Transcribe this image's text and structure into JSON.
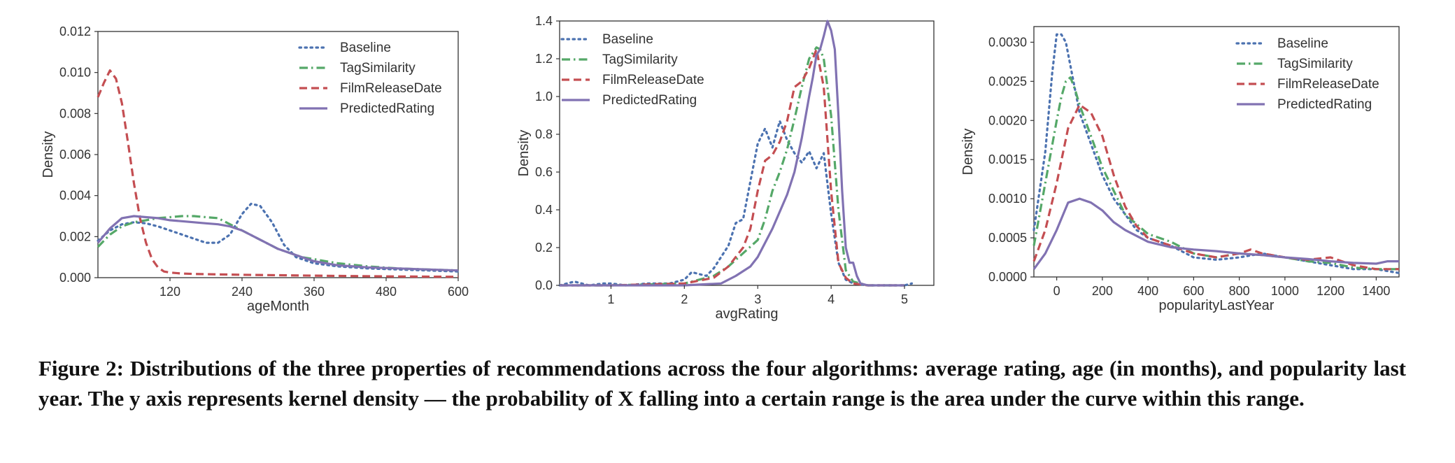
{
  "caption": "Figure 2: Distributions of the three properties of recommendations across the four algorithms: average rating, age (in months), and popularity last year. The y axis represents kernel density — the probability of X falling into a certain range is the area under the curve within this range.",
  "colors": {
    "Baseline": "#4c72b0",
    "TagSimilarity": "#55a868",
    "FilmReleaseDate": "#c44e52",
    "PredictedRating": "#8172b2"
  },
  "chart_data": [
    {
      "type": "line",
      "xlabel": "ageMonth",
      "ylabel": "Density",
      "xlim": [
        0,
        600
      ],
      "ylim": [
        0,
        0.012
      ],
      "xticks": [
        120,
        240,
        360,
        480,
        600
      ],
      "xtick_labels": [
        "120",
        "240",
        "360",
        "480",
        "600"
      ],
      "yticks": [
        0,
        0.002,
        0.004,
        0.006,
        0.008,
        0.01,
        0.012
      ],
      "ytick_labels": [
        "0.000",
        "0.002",
        "0.004",
        "0.006",
        "0.008",
        "0.010",
        "0.012"
      ],
      "legend": "top-right",
      "grid": false,
      "series": [
        {
          "name": "Baseline",
          "style": "dotted",
          "x": [
            0,
            20,
            40,
            60,
            80,
            100,
            120,
            140,
            160,
            180,
            200,
            220,
            240,
            255,
            270,
            290,
            310,
            330,
            360,
            400,
            450,
            500,
            550,
            600
          ],
          "y": [
            0.0018,
            0.0023,
            0.0026,
            0.0027,
            0.00265,
            0.0025,
            0.0023,
            0.0021,
            0.0019,
            0.0017,
            0.0017,
            0.0021,
            0.0031,
            0.0036,
            0.0035,
            0.0027,
            0.0016,
            0.001,
            0.0007,
            0.00055,
            0.00045,
            0.0004,
            0.00035,
            0.0003
          ]
        },
        {
          "name": "TagSimilarity",
          "style": "dashdot",
          "x": [
            0,
            20,
            40,
            60,
            80,
            100,
            120,
            140,
            160,
            180,
            200,
            220,
            240,
            260,
            280,
            300,
            320,
            340,
            360,
            400,
            450,
            500,
            550,
            600
          ],
          "y": [
            0.0015,
            0.0021,
            0.0025,
            0.0027,
            0.0028,
            0.0029,
            0.00295,
            0.003,
            0.003,
            0.00295,
            0.0029,
            0.0026,
            0.0023,
            0.002,
            0.0017,
            0.0014,
            0.0012,
            0.001,
            0.0009,
            0.0007,
            0.00055,
            0.00045,
            0.0004,
            0.00035
          ]
        },
        {
          "name": "FilmReleaseDate",
          "style": "dashed",
          "x": [
            0,
            10,
            20,
            30,
            40,
            50,
            60,
            70,
            80,
            90,
            100,
            110,
            120,
            140,
            160,
            200,
            240,
            300,
            360,
            420,
            480,
            540,
            600
          ],
          "y": [
            0.0088,
            0.0095,
            0.0101,
            0.0097,
            0.0085,
            0.0066,
            0.0046,
            0.0029,
            0.0017,
            0.0009,
            0.0005,
            0.0003,
            0.00025,
            0.0002,
            0.00018,
            0.00016,
            0.00014,
            0.00012,
            0.0001,
            8e-05,
            6e-05,
            5e-05,
            4e-05
          ]
        },
        {
          "name": "PredictedRating",
          "style": "solid",
          "x": [
            0,
            20,
            40,
            60,
            80,
            100,
            120,
            140,
            160,
            180,
            200,
            220,
            240,
            260,
            280,
            300,
            320,
            340,
            360,
            400,
            450,
            500,
            550,
            600
          ],
          "y": [
            0.0017,
            0.0024,
            0.0029,
            0.003,
            0.00295,
            0.0029,
            0.0028,
            0.00275,
            0.0027,
            0.00265,
            0.0026,
            0.0025,
            0.0023,
            0.002,
            0.0017,
            0.0014,
            0.0012,
            0.001,
            0.0008,
            0.0006,
            0.0005,
            0.00045,
            0.0004,
            0.00035
          ]
        }
      ]
    },
    {
      "type": "line",
      "xlabel": "avgRating",
      "ylabel": "Density",
      "xlim": [
        0.3,
        5.4
      ],
      "ylim": [
        0,
        1.4
      ],
      "xticks": [
        1,
        2,
        3,
        4,
        5
      ],
      "xtick_labels": [
        "1",
        "2",
        "3",
        "4",
        "5"
      ],
      "yticks": [
        0,
        0.2,
        0.4,
        0.6,
        0.8,
        1.0,
        1.2,
        1.4
      ],
      "ytick_labels": [
        "0.0",
        "0.2",
        "0.4",
        "0.6",
        "0.8",
        "1.0",
        "1.2",
        "1.4"
      ],
      "legend": "top-left",
      "grid": false,
      "series": [
        {
          "name": "Baseline",
          "style": "dotted",
          "x": [
            0.3,
            0.5,
            0.7,
            0.9,
            1.0,
            1.2,
            1.5,
            1.8,
            2.0,
            2.1,
            2.3,
            2.4,
            2.5,
            2.6,
            2.7,
            2.8,
            2.9,
            3.0,
            3.1,
            3.2,
            3.3,
            3.4,
            3.5,
            3.6,
            3.7,
            3.8,
            3.9,
            4.0,
            4.1,
            4.2,
            4.3,
            4.5,
            5.0,
            5.1
          ],
          "y": [
            0.0,
            0.02,
            0.0,
            0.01,
            0.01,
            0.0,
            0.01,
            0.01,
            0.03,
            0.07,
            0.05,
            0.09,
            0.15,
            0.21,
            0.33,
            0.35,
            0.55,
            0.75,
            0.83,
            0.73,
            0.87,
            0.77,
            0.7,
            0.65,
            0.71,
            0.62,
            0.7,
            0.38,
            0.12,
            0.03,
            0.01,
            0.0,
            0.0,
            0.01
          ]
        },
        {
          "name": "TagSimilarity",
          "style": "dashdot",
          "x": [
            0.3,
            1.0,
            2.0,
            2.4,
            2.6,
            2.8,
            3.0,
            3.1,
            3.2,
            3.3,
            3.4,
            3.5,
            3.6,
            3.7,
            3.8,
            3.85,
            3.9,
            4.0,
            4.1,
            4.2,
            4.3,
            4.5,
            5.0
          ],
          "y": [
            0.0,
            0.0,
            0.01,
            0.05,
            0.1,
            0.17,
            0.24,
            0.35,
            0.5,
            0.6,
            0.72,
            0.88,
            1.05,
            1.2,
            1.26,
            1.25,
            1.2,
            0.9,
            0.4,
            0.08,
            0.02,
            0.0,
            0.0
          ]
        },
        {
          "name": "FilmReleaseDate",
          "style": "dashed",
          "x": [
            0.3,
            1.0,
            2.0,
            2.4,
            2.6,
            2.8,
            2.9,
            3.0,
            3.1,
            3.2,
            3.3,
            3.4,
            3.5,
            3.6,
            3.7,
            3.8,
            3.9,
            4.0,
            4.1,
            4.2,
            4.3,
            4.5,
            5.0
          ],
          "y": [
            0.0,
            0.0,
            0.01,
            0.04,
            0.1,
            0.2,
            0.3,
            0.5,
            0.66,
            0.69,
            0.76,
            0.87,
            1.05,
            1.08,
            1.15,
            1.25,
            1.05,
            0.5,
            0.12,
            0.04,
            0.01,
            0.0,
            0.0
          ]
        },
        {
          "name": "PredictedRating",
          "style": "solid",
          "x": [
            0.3,
            1.0,
            2.0,
            2.5,
            2.7,
            2.9,
            3.0,
            3.2,
            3.4,
            3.5,
            3.6,
            3.7,
            3.75,
            3.8,
            3.85,
            3.9,
            3.95,
            4.0,
            4.05,
            4.1,
            4.15,
            4.2,
            4.25,
            4.3,
            4.35,
            4.4,
            4.5,
            5.0
          ],
          "y": [
            0.0,
            0.0,
            0.0,
            0.01,
            0.05,
            0.1,
            0.15,
            0.3,
            0.48,
            0.6,
            0.78,
            1.0,
            1.1,
            1.22,
            1.25,
            1.32,
            1.4,
            1.35,
            1.25,
            0.9,
            0.5,
            0.2,
            0.12,
            0.12,
            0.05,
            0.01,
            0.0,
            0.0
          ]
        }
      ]
    },
    {
      "type": "line",
      "xlabel": "popularityLastYear",
      "ylabel": "Density",
      "xlim": [
        -100,
        1500
      ],
      "ylim": [
        0,
        0.0032
      ],
      "xticks": [
        0,
        200,
        400,
        600,
        800,
        1000,
        1200,
        1400
      ],
      "xtick_labels": [
        "0",
        "200",
        "400",
        "600",
        "800",
        "1000",
        "1200",
        "1400"
      ],
      "yticks": [
        0,
        0.0005,
        0.001,
        0.0015,
        0.002,
        0.0025,
        0.003
      ],
      "ytick_labels": [
        "0.0000",
        "0.0005",
        "0.0010",
        "0.0015",
        "0.0020",
        "0.0025",
        "0.0030"
      ],
      "legend": "top-right",
      "grid": false,
      "series": [
        {
          "name": "Baseline",
          "style": "dotted",
          "x": [
            -100,
            -50,
            -20,
            0,
            20,
            40,
            60,
            80,
            100,
            150,
            200,
            250,
            300,
            350,
            400,
            500,
            600,
            700,
            800,
            900,
            1000,
            1100,
            1200,
            1300,
            1400,
            1500
          ],
          "y": [
            0.0006,
            0.0016,
            0.0026,
            0.0031,
            0.0031,
            0.003,
            0.0027,
            0.0024,
            0.0021,
            0.0017,
            0.0013,
            0.001,
            0.0008,
            0.0006,
            0.0005,
            0.0004,
            0.00025,
            0.00022,
            0.00025,
            0.0003,
            0.00025,
            0.0002,
            0.00015,
            0.0001,
            0.0001,
            5e-05
          ]
        },
        {
          "name": "TagSimilarity",
          "style": "dashdot",
          "x": [
            -100,
            -50,
            0,
            20,
            40,
            60,
            80,
            100,
            150,
            200,
            250,
            300,
            400,
            500,
            600,
            700,
            800,
            900,
            1000,
            1100,
            1200,
            1300,
            1400,
            1500
          ],
          "y": [
            0.0004,
            0.0012,
            0.002,
            0.0023,
            0.0025,
            0.00255,
            0.0024,
            0.0022,
            0.0018,
            0.0014,
            0.0011,
            0.0008,
            0.00055,
            0.00045,
            0.0003,
            0.00025,
            0.0003,
            0.00028,
            0.00025,
            0.0002,
            0.00018,
            0.00012,
            0.0001,
            0.0001
          ]
        },
        {
          "name": "FilmReleaseDate",
          "style": "dashed",
          "x": [
            -100,
            -50,
            0,
            50,
            100,
            150,
            200,
            250,
            300,
            350,
            400,
            500,
            600,
            700,
            800,
            850,
            900,
            1000,
            1100,
            1200,
            1300,
            1400,
            1500
          ],
          "y": [
            0.0002,
            0.0006,
            0.0012,
            0.0019,
            0.0022,
            0.0021,
            0.0018,
            0.0013,
            0.0009,
            0.00065,
            0.0005,
            0.0004,
            0.0003,
            0.00025,
            0.0003,
            0.00035,
            0.0003,
            0.00025,
            0.00022,
            0.00025,
            0.00015,
            0.0001,
            0.0001
          ]
        },
        {
          "name": "PredictedRating",
          "style": "solid",
          "x": [
            -100,
            -50,
            0,
            50,
            100,
            150,
            200,
            250,
            300,
            400,
            500,
            600,
            700,
            800,
            900,
            1000,
            1100,
            1200,
            1300,
            1400,
            1450,
            1500
          ],
          "y": [
            0.0001,
            0.0003,
            0.0006,
            0.00095,
            0.001,
            0.00095,
            0.00085,
            0.0007,
            0.0006,
            0.00045,
            0.00038,
            0.00035,
            0.00033,
            0.0003,
            0.00028,
            0.00025,
            0.00023,
            0.0002,
            0.00018,
            0.00017,
            0.0002,
            0.0002
          ]
        }
      ]
    }
  ]
}
